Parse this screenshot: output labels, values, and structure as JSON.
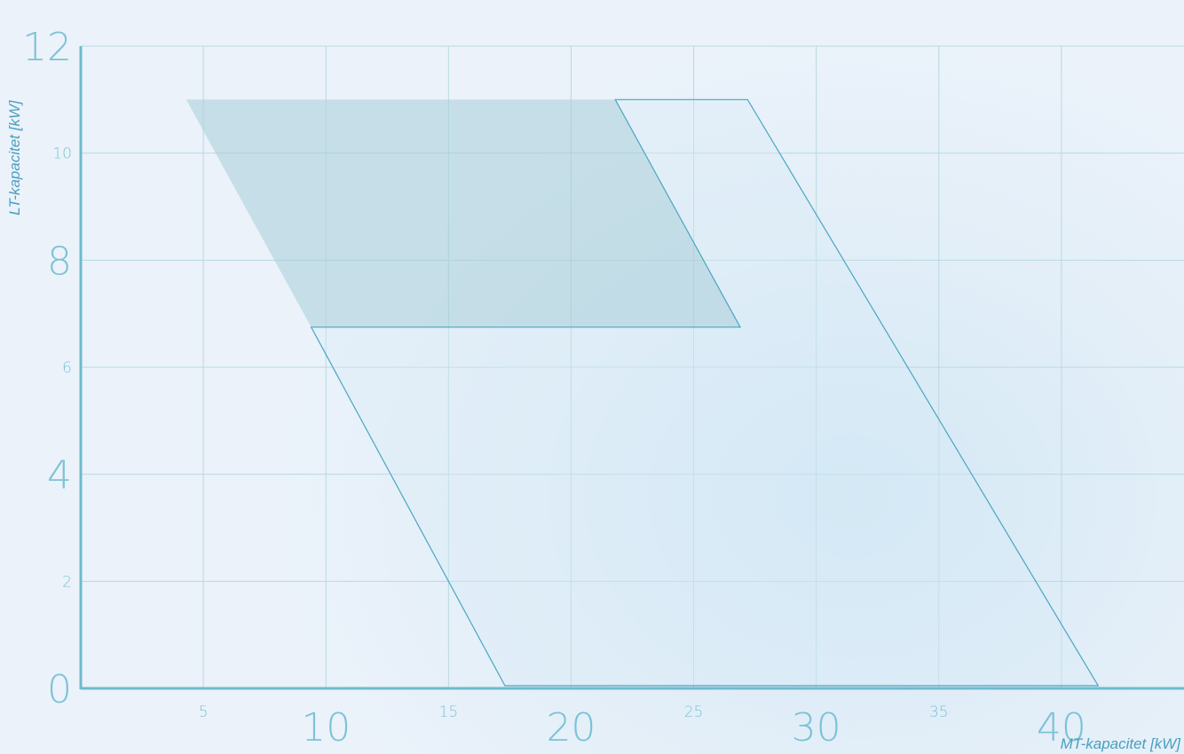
{
  "chart_data": {
    "type": "area",
    "xlabel": "MT-kapacitet [kW]",
    "ylabel": "LT-kapacitet [kW]",
    "xlim": [
      0,
      45
    ],
    "ylim": [
      0,
      12
    ],
    "x_ticks": [
      {
        "value": 5,
        "label": "5",
        "major": false
      },
      {
        "value": 10,
        "label": "10",
        "major": true
      },
      {
        "value": 15,
        "label": "15",
        "major": false
      },
      {
        "value": 20,
        "label": "20",
        "major": true
      },
      {
        "value": 25,
        "label": "25",
        "major": false
      },
      {
        "value": 30,
        "label": "30",
        "major": true
      },
      {
        "value": 35,
        "label": "35",
        "major": false
      },
      {
        "value": 40,
        "label": "40",
        "major": true
      }
    ],
    "y_ticks": [
      {
        "value": 0,
        "label": "0",
        "major": true
      },
      {
        "value": 2,
        "label": "2",
        "major": false
      },
      {
        "value": 4,
        "label": "4",
        "major": true
      },
      {
        "value": 6,
        "label": "6",
        "major": false
      },
      {
        "value": 8,
        "label": "8",
        "major": true
      },
      {
        "value": 10,
        "label": "10",
        "major": false
      },
      {
        "value": 12,
        "label": "12",
        "major": true
      }
    ],
    "grid": true,
    "regions": [
      {
        "style": "filled",
        "color": "#a8cdd8",
        "points": [
          [
            4.3,
            11.0
          ],
          [
            21.8,
            11.0
          ],
          [
            26.9,
            6.75
          ],
          [
            9.4,
            6.75
          ]
        ]
      },
      {
        "style": "outline",
        "color": "#4aa6c0",
        "points": [
          [
            21.8,
            11.0
          ],
          [
            27.2,
            11.0
          ],
          [
            41.5,
            0.05
          ],
          [
            17.3,
            0.05
          ],
          [
            9.4,
            6.75
          ],
          [
            26.9,
            6.75
          ]
        ]
      }
    ]
  }
}
